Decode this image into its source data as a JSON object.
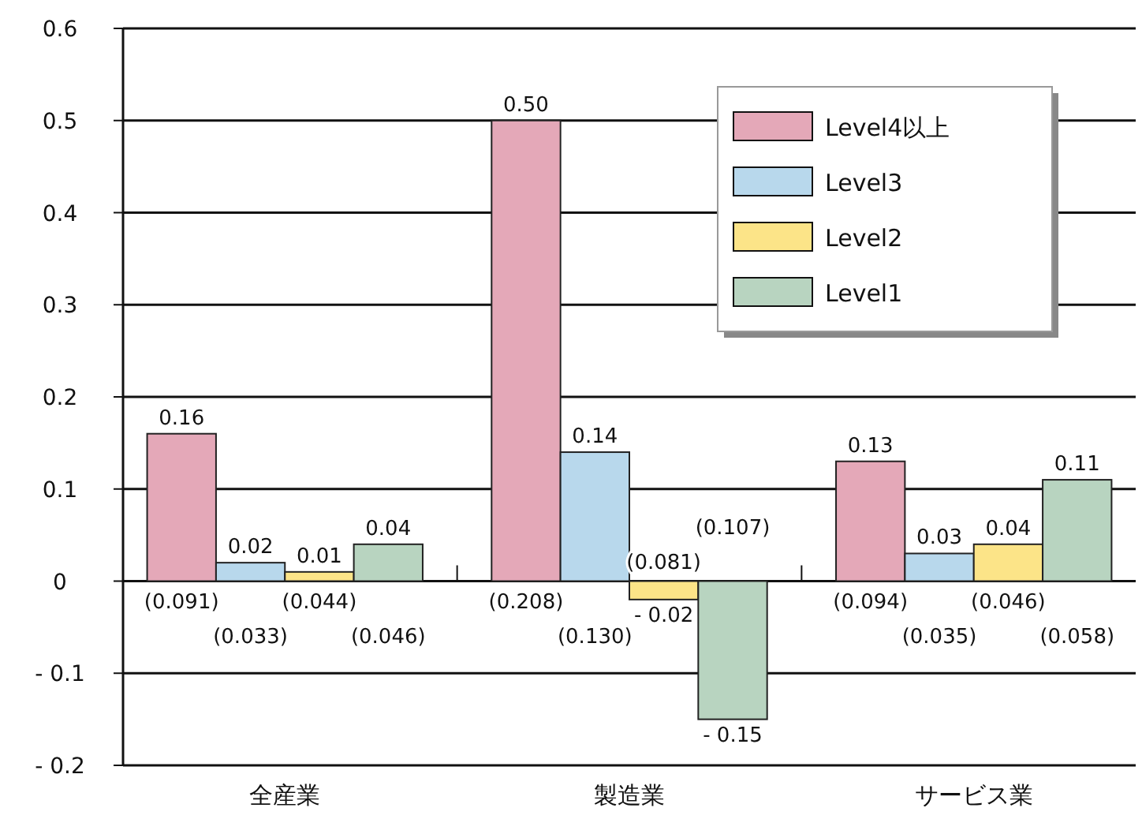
{
  "chart_data": {
    "type": "bar",
    "categories": [
      "全産業",
      "製造業",
      "サービス業"
    ],
    "series": [
      {
        "name": "Level4以上",
        "color": "#e4a8b8",
        "values": [
          0.16,
          0.5,
          0.13
        ],
        "value_labels": [
          "0.16",
          "0.50",
          "0.13"
        ]
      },
      {
        "name": "Level3",
        "color": "#b8d8ec",
        "values": [
          0.02,
          0.14,
          0.03
        ],
        "value_labels": [
          "0.02",
          "0.14",
          "0.03"
        ]
      },
      {
        "name": "Level2",
        "color": "#fce488",
        "values": [
          0.01,
          -0.02,
          0.04
        ],
        "value_labels": [
          "0.01",
          "- 0.02",
          "0.04"
        ]
      },
      {
        "name": "Level1",
        "color": "#b8d4c0",
        "values": [
          0.04,
          -0.15,
          0.11
        ],
        "value_labels": [
          "0.04",
          "- 0.15",
          "0.11"
        ]
      }
    ],
    "ylim": [
      -0.2,
      0.6
    ],
    "yticks": [
      {
        "value": -0.2,
        "label": "- 0.2"
      },
      {
        "value": -0.1,
        "label": "- 0.1"
      },
      0,
      0.1,
      0.2,
      0.3,
      0.4,
      0.5,
      0.6
    ],
    "grid": "y",
    "legend": "top right",
    "annotations": [
      "(0.091)",
      "(0.033)",
      "(0.044)",
      "(0.046)",
      "(0.208)",
      "(0.130)",
      "(0.081)",
      "(0.107)",
      "(0.094)",
      "(0.035)",
      "(0.046)",
      "(0.058)"
    ]
  }
}
